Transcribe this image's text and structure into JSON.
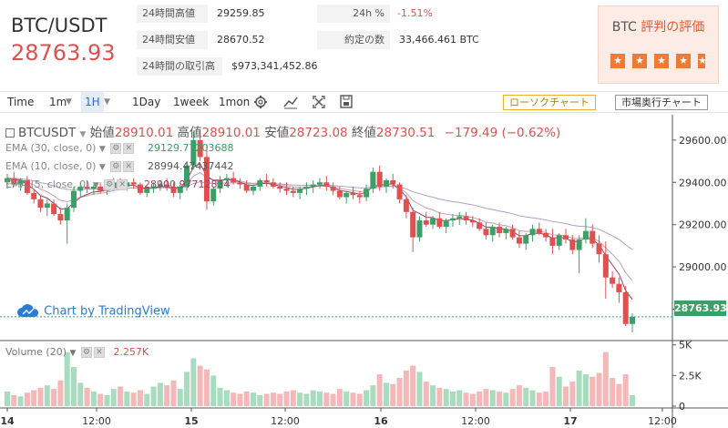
{
  "header": {
    "pair": "BTC/USDT",
    "price": "28763.93",
    "stats": [
      {
        "label": "24時間高値",
        "value": "29259.85"
      },
      {
        "label": "24時間安値",
        "value": "28670.52"
      },
      {
        "label": "24時間の取引高",
        "value": "$973,341,452.86"
      },
      {
        "label": "24h %",
        "value": "-1.51%"
      },
      {
        "label": "約定の数",
        "value": "33,466.461 BTC"
      }
    ],
    "rating": {
      "title_prefix": "BTC ",
      "title_suffix": "評判の評価",
      "stars": 4.5
    }
  },
  "toolbar": {
    "items": [
      "Time",
      "1m",
      "1H",
      "1Day",
      "1week",
      "1mon"
    ],
    "active": "1H",
    "btn_candle": "ローソクチャート",
    "btn_depth": "市場奥行チャート"
  },
  "chart": {
    "symbol": "BTCUSDT",
    "open_label": "始値",
    "open": "28910.01",
    "high_label": "高値",
    "high": "28910.01",
    "low_label": "安値",
    "low": "28723.08",
    "close_label": "終値",
    "close": "28730.51",
    "change": "−179.49 (−0.62%)",
    "ema30_label": "EMA (30, close, 0)",
    "ema30_value": "29129.77203688",
    "ema10_label": "EMA (10, close, 0)",
    "ema10_value": "28994.47437442",
    "ema5_label": "EMA (5, close, 0)",
    "ema5_value": "28900.97712834",
    "watermark": "Chart by TradingView",
    "last_price": "28763.93",
    "volume_label": "Volume (20)",
    "volume_value": "2.257K",
    "colors": {
      "up": "#3aa067",
      "down": "#e05050",
      "vol_up": "#a8dcbf",
      "vol_down": "#f4b8b8"
    }
  },
  "chart_data": {
    "type": "candlestick",
    "y_ticks": [
      "29600.00",
      "29400.00",
      "29200.00",
      "29000.00",
      "28800.00"
    ],
    "ylim": [
      28660,
      29720
    ],
    "vol_ticks": [
      "5K",
      "2.5K",
      "0"
    ],
    "vol_ylim": [
      0,
      5200
    ],
    "x_ticks": [
      "14",
      "12:00",
      "15",
      "12:00",
      "16",
      "12:00",
      "17",
      "12:00"
    ],
    "candles": [
      [
        29400,
        29440,
        29370,
        29420,
        1200
      ],
      [
        29420,
        29450,
        29380,
        29390,
        900
      ],
      [
        29390,
        29420,
        29360,
        29410,
        800
      ],
      [
        29410,
        29430,
        29340,
        29350,
        1100
      ],
      [
        29350,
        29370,
        29300,
        29320,
        1300
      ],
      [
        29320,
        29340,
        29260,
        29280,
        1500
      ],
      [
        29280,
        29320,
        29240,
        29300,
        1700
      ],
      [
        29300,
        29320,
        29240,
        29250,
        1400
      ],
      [
        29250,
        29280,
        29200,
        29220,
        2100
      ],
      [
        29220,
        29300,
        29110,
        29280,
        4400
      ],
      [
        29280,
        29380,
        29260,
        29360,
        3200
      ],
      [
        29360,
        29400,
        29330,
        29380,
        1900
      ],
      [
        29380,
        29410,
        29350,
        29370,
        1500
      ],
      [
        29370,
        29390,
        29340,
        29380,
        1200
      ],
      [
        29380,
        29400,
        29350,
        29360,
        1000
      ],
      [
        29360,
        29390,
        29340,
        29380,
        900
      ],
      [
        29380,
        29420,
        29360,
        29400,
        1400
      ],
      [
        29400,
        29420,
        29370,
        29380,
        1600
      ],
      [
        29380,
        29410,
        29360,
        29400,
        1200
      ],
      [
        29400,
        29420,
        29370,
        29390,
        1100
      ],
      [
        29390,
        29400,
        29340,
        29350,
        1300
      ],
      [
        29350,
        29380,
        29330,
        29370,
        1000
      ],
      [
        29370,
        29400,
        29350,
        29380,
        1600
      ],
      [
        29380,
        29410,
        29360,
        29390,
        1900
      ],
      [
        29390,
        29420,
        29360,
        29380,
        1700
      ],
      [
        29380,
        29400,
        29330,
        29350,
        2100
      ],
      [
        29350,
        29390,
        29320,
        29380,
        1400
      ],
      [
        29380,
        29500,
        29360,
        29480,
        2800
      ],
      [
        29480,
        29640,
        29460,
        29600,
        3900
      ],
      [
        29600,
        29640,
        29500,
        29520,
        3300
      ],
      [
        29520,
        29580,
        29270,
        29310,
        3000
      ],
      [
        29310,
        29380,
        29290,
        29370,
        2500
      ],
      [
        29370,
        29430,
        29350,
        29410,
        1500
      ],
      [
        29410,
        29440,
        29380,
        29420,
        1300
      ],
      [
        29420,
        29450,
        29390,
        29400,
        1100
      ],
      [
        29400,
        29420,
        29370,
        29390,
        1000
      ],
      [
        29390,
        29410,
        29350,
        29360,
        1200
      ],
      [
        29360,
        29390,
        29340,
        29380,
        1100
      ],
      [
        29380,
        29420,
        29360,
        29410,
        900
      ],
      [
        29410,
        29440,
        29380,
        29400,
        1000
      ],
      [
        29400,
        29420,
        29370,
        29380,
        1100
      ],
      [
        29380,
        29400,
        29350,
        29370,
        1000
      ],
      [
        29370,
        29400,
        29340,
        29360,
        1200
      ],
      [
        29360,
        29380,
        29330,
        29350,
        1300
      ],
      [
        29350,
        29380,
        29320,
        29370,
        1100
      ],
      [
        29370,
        29400,
        29340,
        29380,
        1000
      ],
      [
        29380,
        29410,
        29350,
        29390,
        1300
      ],
      [
        29390,
        29420,
        29370,
        29400,
        1200
      ],
      [
        29400,
        29430,
        29360,
        29380,
        1100
      ],
      [
        29380,
        29400,
        29340,
        29360,
        1000
      ],
      [
        29360,
        29380,
        29320,
        29330,
        1400
      ],
      [
        29330,
        29360,
        29300,
        29350,
        1200
      ],
      [
        29350,
        29380,
        29320,
        29340,
        1100
      ],
      [
        29340,
        29360,
        29300,
        29330,
        1000
      ],
      [
        29330,
        29390,
        29310,
        29370,
        1300
      ],
      [
        29370,
        29470,
        29350,
        29450,
        1700
      ],
      [
        29450,
        29480,
        29360,
        29380,
        2600
      ],
      [
        29380,
        29420,
        29350,
        29410,
        1900
      ],
      [
        29410,
        29440,
        29370,
        29390,
        1800
      ],
      [
        29390,
        29400,
        29300,
        29320,
        2300
      ],
      [
        29320,
        29340,
        29230,
        29260,
        2900
      ],
      [
        29260,
        29280,
        29070,
        29140,
        3300
      ],
      [
        29140,
        29240,
        29120,
        29220,
        2800
      ],
      [
        29220,
        29260,
        29190,
        29200,
        2000
      ],
      [
        29200,
        29240,
        29180,
        29230,
        1700
      ],
      [
        29230,
        29260,
        29180,
        29190,
        1500
      ],
      [
        29190,
        29230,
        29160,
        29220,
        1400
      ],
      [
        29220,
        29250,
        29190,
        29230,
        1200
      ],
      [
        29230,
        29260,
        29200,
        29240,
        1300
      ],
      [
        29240,
        29260,
        29200,
        29220,
        1100
      ],
      [
        29220,
        29240,
        29190,
        29210,
        1000
      ],
      [
        29210,
        29230,
        29170,
        29180,
        1200
      ],
      [
        29180,
        29210,
        29130,
        29150,
        1400
      ],
      [
        29150,
        29200,
        29120,
        29190,
        1300
      ],
      [
        29190,
        29210,
        29140,
        29160,
        1200
      ],
      [
        29160,
        29190,
        29130,
        29180,
        1100
      ],
      [
        29180,
        29200,
        29130,
        29140,
        1400
      ],
      [
        29140,
        29170,
        29090,
        29110,
        1700
      ],
      [
        29110,
        29160,
        29080,
        29150,
        1500
      ],
      [
        29150,
        29200,
        29120,
        29180,
        1300
      ],
      [
        29180,
        29210,
        29150,
        29160,
        1100
      ],
      [
        29160,
        29180,
        29120,
        29140,
        1200
      ],
      [
        29140,
        29180,
        29060,
        29100,
        3200
      ],
      [
        29100,
        29160,
        29080,
        29150,
        2400
      ],
      [
        29150,
        29180,
        29110,
        29130,
        1600
      ],
      [
        29130,
        29150,
        29060,
        29080,
        2000
      ],
      [
        29080,
        29150,
        28970,
        29130,
        2900
      ],
      [
        29130,
        29230,
        29110,
        29170,
        2600
      ],
      [
        29170,
        29200,
        29090,
        29110,
        2400
      ],
      [
        29110,
        29150,
        29020,
        29060,
        2700
      ],
      [
        29060,
        29120,
        28850,
        28950,
        4400
      ],
      [
        28950,
        28980,
        28900,
        28920,
        2300
      ],
      [
        28920,
        28950,
        28830,
        28880,
        1800
      ],
      [
        28880,
        28910,
        28720,
        28730,
        2600
      ],
      [
        28730,
        28780,
        28690,
        28764,
        900
      ]
    ]
  }
}
